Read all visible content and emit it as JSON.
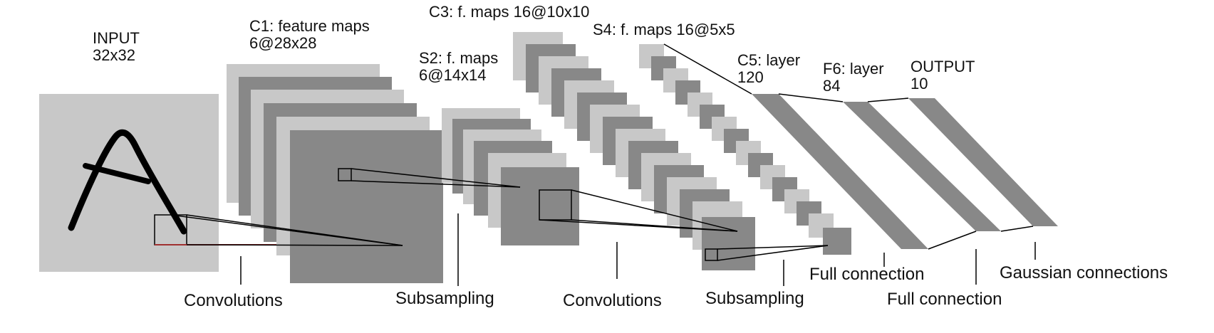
{
  "layers": {
    "input": {
      "name": "INPUT",
      "size": "32x32"
    },
    "c1": {
      "name": "C1: feature maps",
      "size": "6@28x28"
    },
    "s2": {
      "name": "S2: f. maps",
      "size": "6@14x14"
    },
    "c3": {
      "name": "C3: f. maps 16@10x10"
    },
    "s4": {
      "name": "S4: f. maps 16@5x5"
    },
    "c5": {
      "name": "C5: layer",
      "size": "120"
    },
    "f6": {
      "name": "F6: layer",
      "size": "84"
    },
    "output": {
      "name": "OUTPUT",
      "size": "10"
    }
  },
  "operations": {
    "conv1": "Convolutions",
    "sub1": "Subsampling",
    "conv2": "Convolutions",
    "sub2": "Subsampling",
    "full1": "Full connection",
    "full2": "Full connection",
    "gauss": "Gaussian connections"
  },
  "colors": {
    "light": "#c8c8c8",
    "dark": "#888888",
    "stroke": "#000000",
    "input_bg": "#c8c8c8",
    "red_line": "#a03030"
  }
}
